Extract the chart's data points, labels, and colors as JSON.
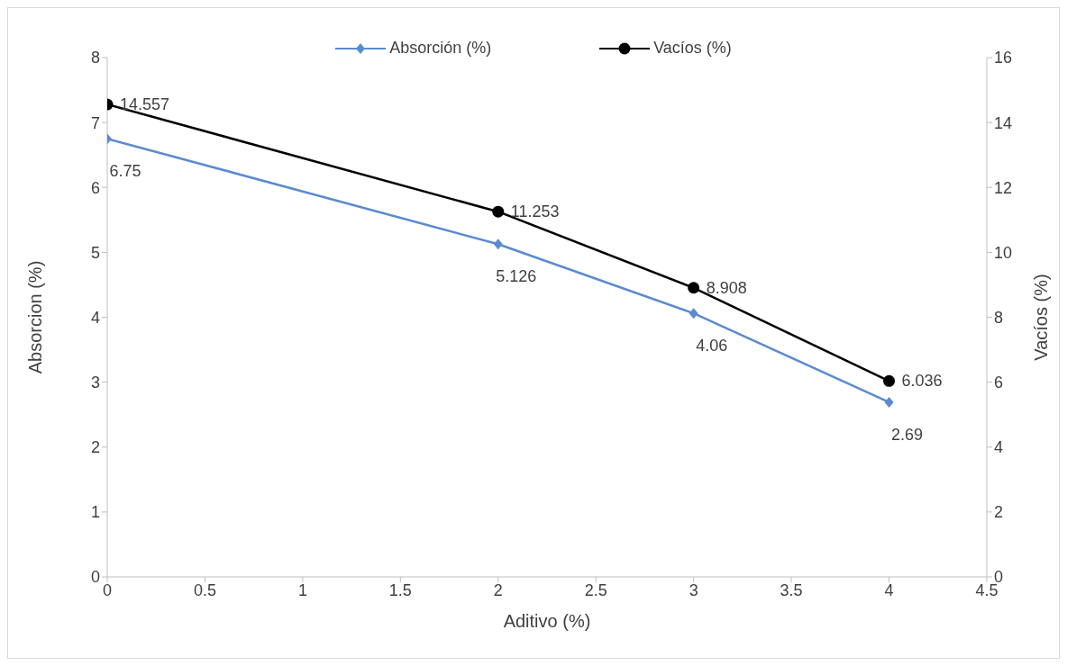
{
  "chart_data": {
    "type": "line",
    "xlabel": "Aditivo (%)",
    "ylabel": "Absorcion (%)",
    "y2label": "Vacíos (%)",
    "x": [
      0,
      2,
      3,
      4
    ],
    "series": [
      {
        "name": "Absorción (%)",
        "color": "#5b8bd0",
        "marker": "diamond",
        "values": [
          6.75,
          5.126,
          4.06,
          2.69
        ]
      },
      {
        "name": "Vacíos (%)",
        "color": "#000000",
        "marker": "circle",
        "axis": "y2",
        "values": [
          14.557,
          11.253,
          8.908,
          6.036
        ]
      }
    ],
    "xlim": [
      0,
      4.5
    ],
    "xticks": [
      0,
      0.5,
      1,
      1.5,
      2,
      2.5,
      3,
      3.5,
      4,
      4.5
    ],
    "ylim": [
      0,
      8
    ],
    "yticks": [
      0,
      1,
      2,
      3,
      4,
      5,
      6,
      7,
      8
    ],
    "y2lim": [
      0,
      16
    ],
    "y2ticks": [
      0,
      2,
      4,
      6,
      8,
      10,
      12,
      14,
      16
    ],
    "legend": "top",
    "data_labels": true
  }
}
